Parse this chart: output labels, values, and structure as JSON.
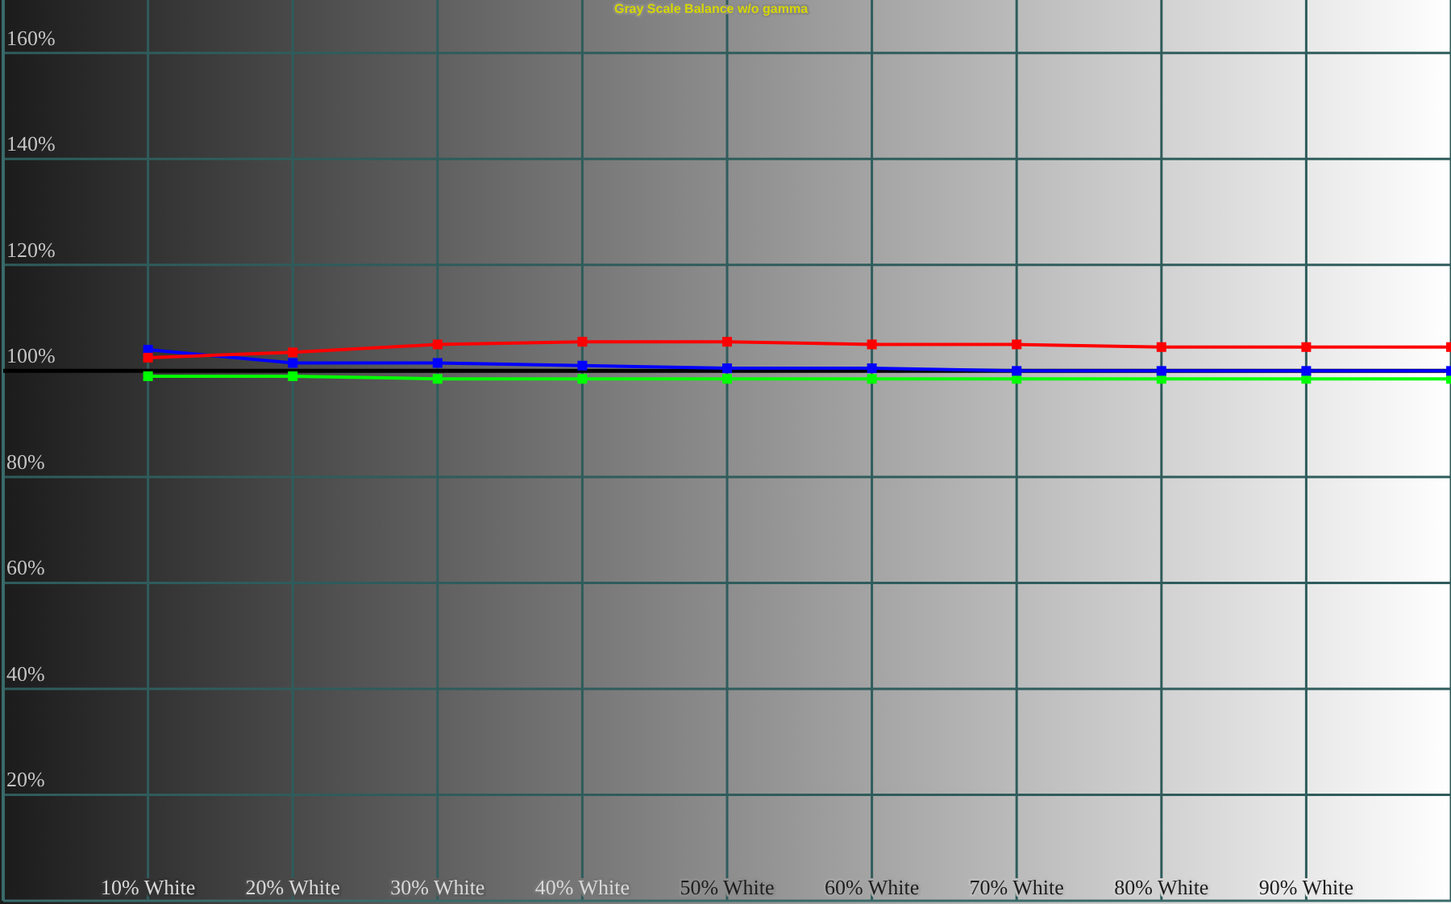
{
  "chart_data": {
    "type": "line",
    "title": "Gray Scale Balance w/o gamma",
    "categories": [
      "10% White",
      "20% White",
      "30% White",
      "40% White",
      "50% White",
      "60% White",
      "70% White",
      "80% White",
      "90% White",
      null
    ],
    "series": [
      {
        "color": "#00ff00",
        "values": [
          99,
          99,
          98.5,
          98.5,
          98.5,
          98.5,
          98.5,
          98.5,
          98.5,
          98.5
        ]
      },
      {
        "color": "#0000ff",
        "values": [
          104,
          101.5,
          101.5,
          101,
          100.5,
          100.5,
          100,
          100,
          100,
          100
        ]
      },
      {
        "color": "#ff0000",
        "values": [
          102.5,
          103.5,
          105,
          105.5,
          105.5,
          105,
          105,
          104.5,
          104.5,
          104.5
        ]
      }
    ],
    "ylim": [
      0,
      170
    ],
    "yticks": [
      {
        "value": 20,
        "label": "20%"
      },
      {
        "value": 40,
        "label": "40%"
      },
      {
        "value": 60,
        "label": "60%"
      },
      {
        "value": 80,
        "label": "80%"
      },
      {
        "value": 100,
        "label": "100%"
      },
      {
        "value": 120,
        "label": "120%"
      },
      {
        "value": 140,
        "label": "140%"
      },
      {
        "value": 160,
        "label": "160%"
      }
    ],
    "grid": true,
    "marker": "square",
    "ref_lines": [
      {
        "axis": "y",
        "value": 100,
        "color": "#000000"
      }
    ]
  }
}
